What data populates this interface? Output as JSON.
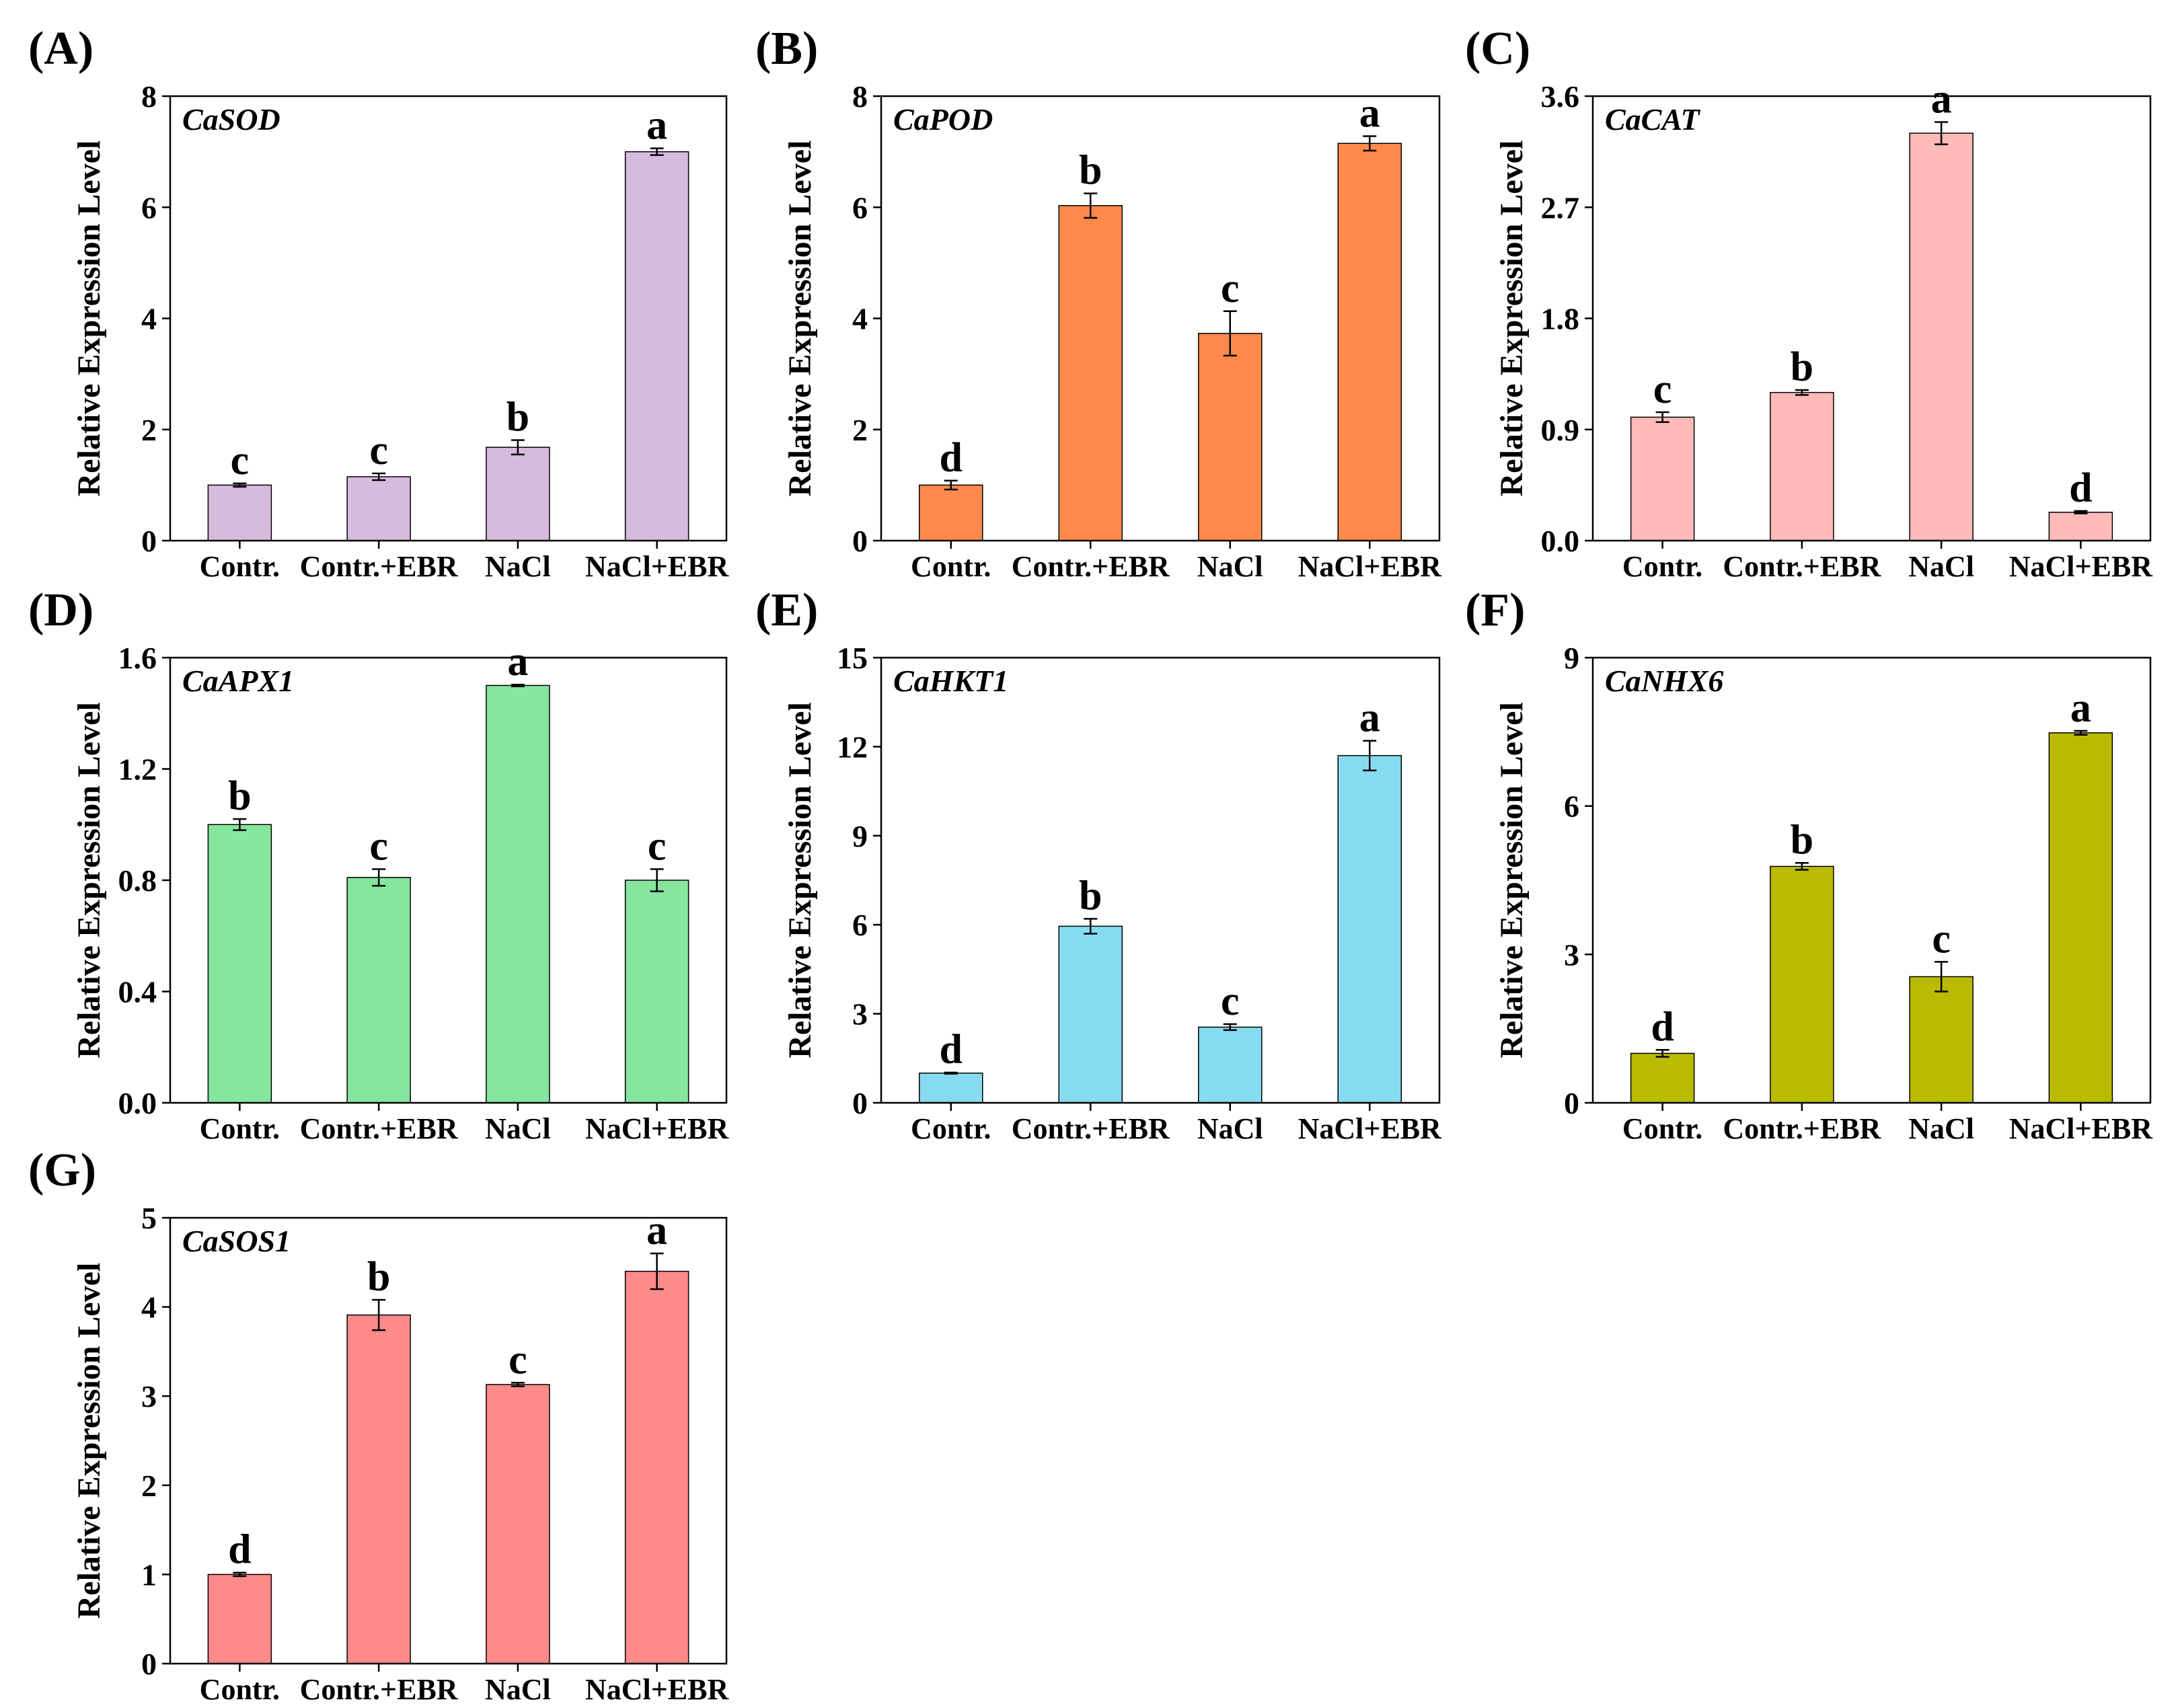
{
  "figure": {
    "ylabel": "Relative Expression Level",
    "categories": [
      "Contr.",
      "Contr.+EBR",
      "NaCl",
      "NaCl+EBR"
    ]
  },
  "chart_data": [
    {
      "type": "bar",
      "panel": "(A)",
      "gene": "CaSOD",
      "color": "#D7BBDD",
      "ylabel": "Relative Expression Level",
      "ylim": [
        0,
        8
      ],
      "yticks": [
        0,
        2,
        4,
        6,
        8
      ],
      "ytick_labels": [
        "0",
        "2",
        "4",
        "6",
        "8"
      ],
      "categories": [
        "Contr.",
        "Contr.+EBR",
        "NaCl",
        "NaCl+EBR"
      ],
      "values": [
        1.0,
        1.15,
        1.68,
        7.0
      ],
      "errors": [
        0.03,
        0.06,
        0.13,
        0.06
      ],
      "letters": [
        "c",
        "c",
        "b",
        "a"
      ]
    },
    {
      "type": "bar",
      "panel": "(B)",
      "gene": "CaPOD",
      "color": "#FF8A4C",
      "ylabel": "Relative Expression Level",
      "ylim": [
        0,
        8
      ],
      "yticks": [
        0,
        2,
        4,
        6,
        8
      ],
      "ytick_labels": [
        "0",
        "2",
        "4",
        "6",
        "8"
      ],
      "categories": [
        "Contr.",
        "Contr.+EBR",
        "NaCl",
        "NaCl+EBR"
      ],
      "values": [
        1.0,
        6.03,
        3.73,
        7.15
      ],
      "errors": [
        0.08,
        0.22,
        0.4,
        0.13
      ],
      "letters": [
        "d",
        "b",
        "c",
        "a"
      ]
    },
    {
      "type": "bar",
      "panel": "(C)",
      "gene": "CaCAT",
      "color": "#FFBBBA",
      "ylabel": "Relative Expression Level",
      "ylim": [
        0,
        3.6
      ],
      "yticks": [
        0,
        0.9,
        1.8,
        2.7,
        3.6
      ],
      "ytick_labels": [
        "0.0",
        "0.9",
        "1.8",
        "2.7",
        "3.6"
      ],
      "categories": [
        "Contr.",
        "Contr.+EBR",
        "NaCl",
        "NaCl+EBR"
      ],
      "values": [
        1.0,
        1.2,
        3.3,
        0.23
      ],
      "errors": [
        0.04,
        0.02,
        0.09,
        0.01
      ],
      "letters": [
        "c",
        "b",
        "a",
        "d"
      ]
    },
    {
      "type": "bar",
      "panel": "(D)",
      "gene": "CaAPX1",
      "color": "#86E59F",
      "ylabel": "Relative Expression Level",
      "ylim": [
        0,
        1.6
      ],
      "yticks": [
        0,
        0.4,
        0.8,
        1.2,
        1.6
      ],
      "ytick_labels": [
        "0.0",
        "0.4",
        "0.8",
        "1.2",
        "1.6"
      ],
      "categories": [
        "Contr.",
        "Contr.+EBR",
        "NaCl",
        "NaCl+EBR"
      ],
      "values": [
        1.0,
        0.81,
        1.5,
        0.8
      ],
      "errors": [
        0.02,
        0.03,
        0.003,
        0.04
      ],
      "letters": [
        "b",
        "c",
        "a",
        "c"
      ]
    },
    {
      "type": "bar",
      "panel": "(E)",
      "gene": "CaHKT1",
      "color": "#87DBF1",
      "ylabel": "Relative Expression Level",
      "ylim": [
        0,
        15
      ],
      "yticks": [
        0,
        3,
        6,
        9,
        12,
        15
      ],
      "ytick_labels": [
        "0",
        "3",
        "6",
        "9",
        "12",
        "15"
      ],
      "categories": [
        "Contr.",
        "Contr.+EBR",
        "NaCl",
        "NaCl+EBR"
      ],
      "values": [
        1.0,
        5.95,
        2.55,
        11.7
      ],
      "errors": [
        0.02,
        0.25,
        0.1,
        0.5
      ],
      "letters": [
        "d",
        "b",
        "c",
        "a"
      ]
    },
    {
      "type": "bar",
      "panel": "(F)",
      "gene": "CaNHX6",
      "color": "#BABA00",
      "ylabel": "Relative Expression Level",
      "ylim": [
        0,
        9
      ],
      "yticks": [
        0,
        3,
        6,
        9
      ],
      "ytick_labels": [
        "0",
        "3",
        "6",
        "9"
      ],
      "categories": [
        "Contr.",
        "Contr.+EBR",
        "NaCl",
        "NaCl+EBR"
      ],
      "values": [
        1.0,
        4.78,
        2.55,
        7.48
      ],
      "errors": [
        0.07,
        0.07,
        0.3,
        0.04
      ],
      "letters": [
        "d",
        "b",
        "c",
        "a"
      ]
    },
    {
      "type": "bar",
      "panel": "(G)",
      "gene": "CaSOS1",
      "color": "#FF8A8A",
      "ylabel": "Relative Expression Level",
      "ylim": [
        0,
        5
      ],
      "yticks": [
        0,
        1,
        2,
        3,
        4,
        5
      ],
      "ytick_labels": [
        "0",
        "1",
        "2",
        "3",
        "4",
        "5"
      ],
      "categories": [
        "Contr.",
        "Contr.+EBR",
        "NaCl",
        "NaCl+EBR"
      ],
      "values": [
        1.0,
        3.91,
        3.13,
        4.4
      ],
      "errors": [
        0.02,
        0.17,
        0.02,
        0.2
      ],
      "letters": [
        "d",
        "b",
        "c",
        "a"
      ]
    }
  ]
}
